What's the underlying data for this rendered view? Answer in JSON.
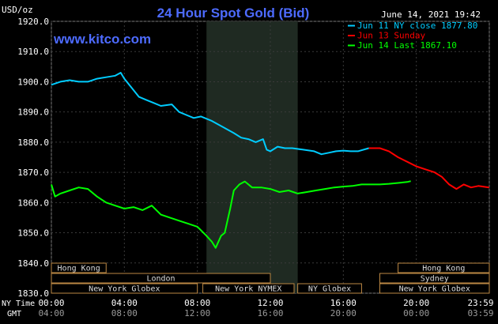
{
  "chart_data": {
    "type": "line",
    "title": "24 Hour Spot Gold (Bid)",
    "site": "www.kitco.com",
    "timestamp": "June 14, 2021 19:42",
    "y_unit": "USD/oz",
    "ylim": [
      1830,
      1920
    ],
    "y_ticks": [
      "1920.0",
      "1910.0",
      "1900.0",
      "1890.0",
      "1880.0",
      "1870.0",
      "1860.0",
      "1850.0",
      "1840.0",
      "1830.0"
    ],
    "x_range_hours": [
      0,
      24
    ],
    "x_ticks_ny": [
      "00:00",
      "04:00",
      "08:00",
      "12:00",
      "16:00",
      "20:00",
      "23:59"
    ],
    "x_ticks_gmt": [
      "04:00",
      "08:00",
      "12:00",
      "16:00",
      "20:00",
      "00:00",
      "03:59"
    ],
    "x_label_ny": "NY Time",
    "x_label_gmt": "GMT",
    "grid": true,
    "legend_position": "top-right",
    "highlight_hours": [
      8.5,
      13.5
    ],
    "series": [
      {
        "name": "Jun 11 NY close 1877.80",
        "color": "#00ccff",
        "x": [
          0.0,
          0.5,
          1.0,
          1.5,
          2.0,
          2.5,
          3.0,
          3.5,
          3.8,
          4.0,
          4.4,
          4.8,
          5.2,
          5.6,
          6.0,
          6.6,
          7.0,
          7.4,
          7.8,
          8.2,
          8.8,
          9.4,
          10.0,
          10.4,
          10.8,
          11.2,
          11.6,
          11.8,
          12.0,
          12.4,
          12.8,
          13.2,
          13.8,
          14.4,
          14.8,
          15.2,
          15.6,
          16.0,
          16.4,
          16.8,
          17.4
        ],
        "y": [
          1899,
          1900,
          1900.5,
          1900,
          1900,
          1901,
          1901.5,
          1902,
          1903,
          1901,
          1898,
          1895,
          1894,
          1893,
          1892,
          1892.5,
          1890,
          1889,
          1888,
          1888.5,
          1887,
          1885,
          1883,
          1881.5,
          1881,
          1880,
          1881,
          1877.5,
          1877,
          1878.5,
          1878,
          1878,
          1877.5,
          1877,
          1876,
          1876.5,
          1877,
          1877.2,
          1877,
          1877,
          1878
        ]
      },
      {
        "name": "Jun 13 Sunday",
        "color": "#ff0000",
        "x": [
          17.4,
          18.0,
          18.5,
          19.0,
          19.5,
          20.0,
          20.5,
          21.0,
          21.4,
          21.8,
          22.2,
          22.6,
          23.0,
          23.4,
          23.99
        ],
        "y": [
          1878,
          1878,
          1877,
          1875,
          1873.5,
          1872,
          1871,
          1870,
          1868.5,
          1866,
          1864.5,
          1866,
          1865,
          1865.5,
          1865
        ]
      },
      {
        "name": "Jun 14 Last 1867.10",
        "color": "#00ff00",
        "x": [
          0.0,
          0.2,
          0.5,
          1.0,
          1.5,
          2.0,
          2.5,
          3.0,
          3.5,
          4.0,
          4.5,
          5.0,
          5.5,
          6.0,
          6.5,
          7.0,
          7.5,
          8.0,
          8.5,
          8.8,
          9.0,
          9.3,
          9.5,
          9.8,
          10.0,
          10.3,
          10.6,
          11.0,
          11.5,
          12.0,
          12.5,
          13.0,
          13.5,
          14.0,
          14.5,
          15.0,
          15.5,
          16.0,
          16.5,
          17.0,
          17.5,
          18.0,
          18.5,
          19.0,
          19.5,
          19.7
        ],
        "y": [
          1866,
          1862,
          1863,
          1864,
          1865,
          1864.5,
          1862,
          1860,
          1859,
          1858,
          1858.5,
          1857.5,
          1859,
          1856,
          1855,
          1854,
          1853,
          1852,
          1849,
          1847,
          1845,
          1849,
          1850,
          1858,
          1864,
          1866,
          1867,
          1865,
          1865,
          1864.5,
          1863.5,
          1864,
          1863,
          1863.5,
          1864,
          1864.5,
          1865,
          1865.3,
          1865.5,
          1866,
          1866,
          1866,
          1866.2,
          1866.5,
          1866.8,
          1867.1
        ]
      }
    ],
    "sessions": [
      {
        "label": "Hong Kong",
        "row": 1,
        "start": 0,
        "end": 3
      },
      {
        "label": "London",
        "row": 2,
        "start": 0,
        "end": 12
      },
      {
        "label": "New York Globex",
        "row": 3,
        "start": 0,
        "end": 8
      },
      {
        "label": "New York NYMEX",
        "row": 3,
        "start": 8.3,
        "end": 13.3
      },
      {
        "label": "NY Globex",
        "row": 3,
        "start": 13.5,
        "end": 17
      },
      {
        "label": "Hong Kong",
        "row": 1,
        "start": 19,
        "end": 24
      },
      {
        "label": "Sydney",
        "row": 2,
        "start": 18,
        "end": 24
      },
      {
        "label": "New York Globex",
        "row": 3,
        "start": 18,
        "end": 24
      }
    ]
  }
}
